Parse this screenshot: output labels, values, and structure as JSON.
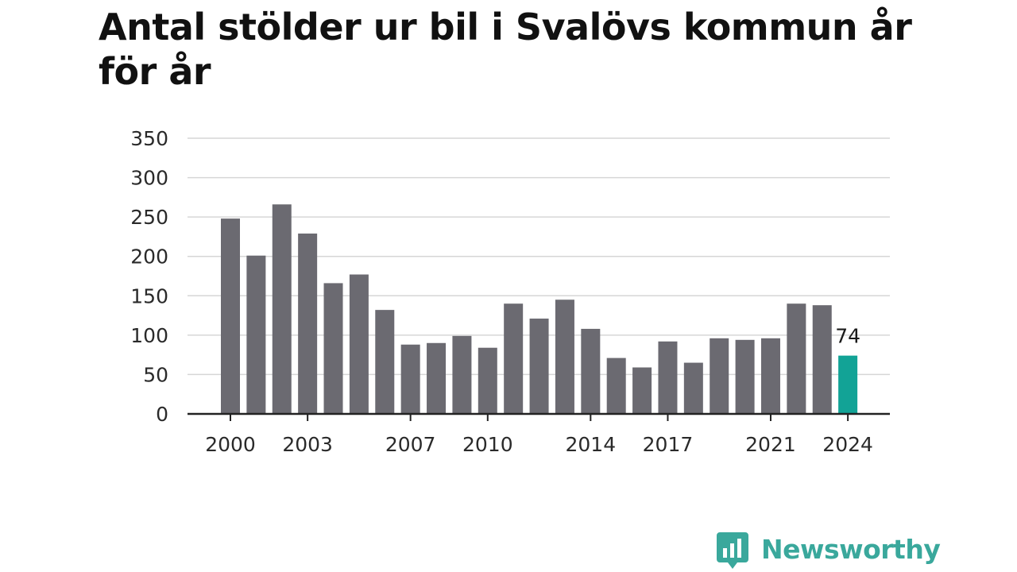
{
  "title": "Antal stölder ur bil i Svalövs kommun år för år",
  "colors": {
    "bar": "#6b6a71",
    "highlight": "#12a396",
    "grid": "#d6d6d6",
    "axis": "#222222",
    "brand": "#3aa89c"
  },
  "brand": {
    "name": "Newsworthy",
    "icon": "newsworthy-logo-icon"
  },
  "chart_data": {
    "type": "bar",
    "title": "Antal stölder ur bil i Svalövs kommun år för år",
    "xlabel": "",
    "ylabel": "",
    "ylim": [
      0,
      350
    ],
    "yticks": [
      "0",
      "50",
      "100",
      "150",
      "200",
      "250",
      "300",
      "350"
    ],
    "grid": true,
    "categories": [
      "2000",
      "2001",
      "2002",
      "2003",
      "2004",
      "2005",
      "2006",
      "2007",
      "2008",
      "2009",
      "2010",
      "2011",
      "2012",
      "2013",
      "2014",
      "2015",
      "2016",
      "2017",
      "2018",
      "2019",
      "2020",
      "2021",
      "2022",
      "2023",
      "2024"
    ],
    "xtick_labels": [
      "2000",
      "2003",
      "2007",
      "2010",
      "2014",
      "2017",
      "2021",
      "2024"
    ],
    "values": [
      248,
      201,
      266,
      229,
      166,
      177,
      132,
      88,
      90,
      99,
      84,
      140,
      121,
      145,
      108,
      71,
      59,
      92,
      65,
      96,
      94,
      96,
      140,
      138,
      74
    ],
    "highlight": {
      "category": "2024",
      "label": "74"
    }
  }
}
